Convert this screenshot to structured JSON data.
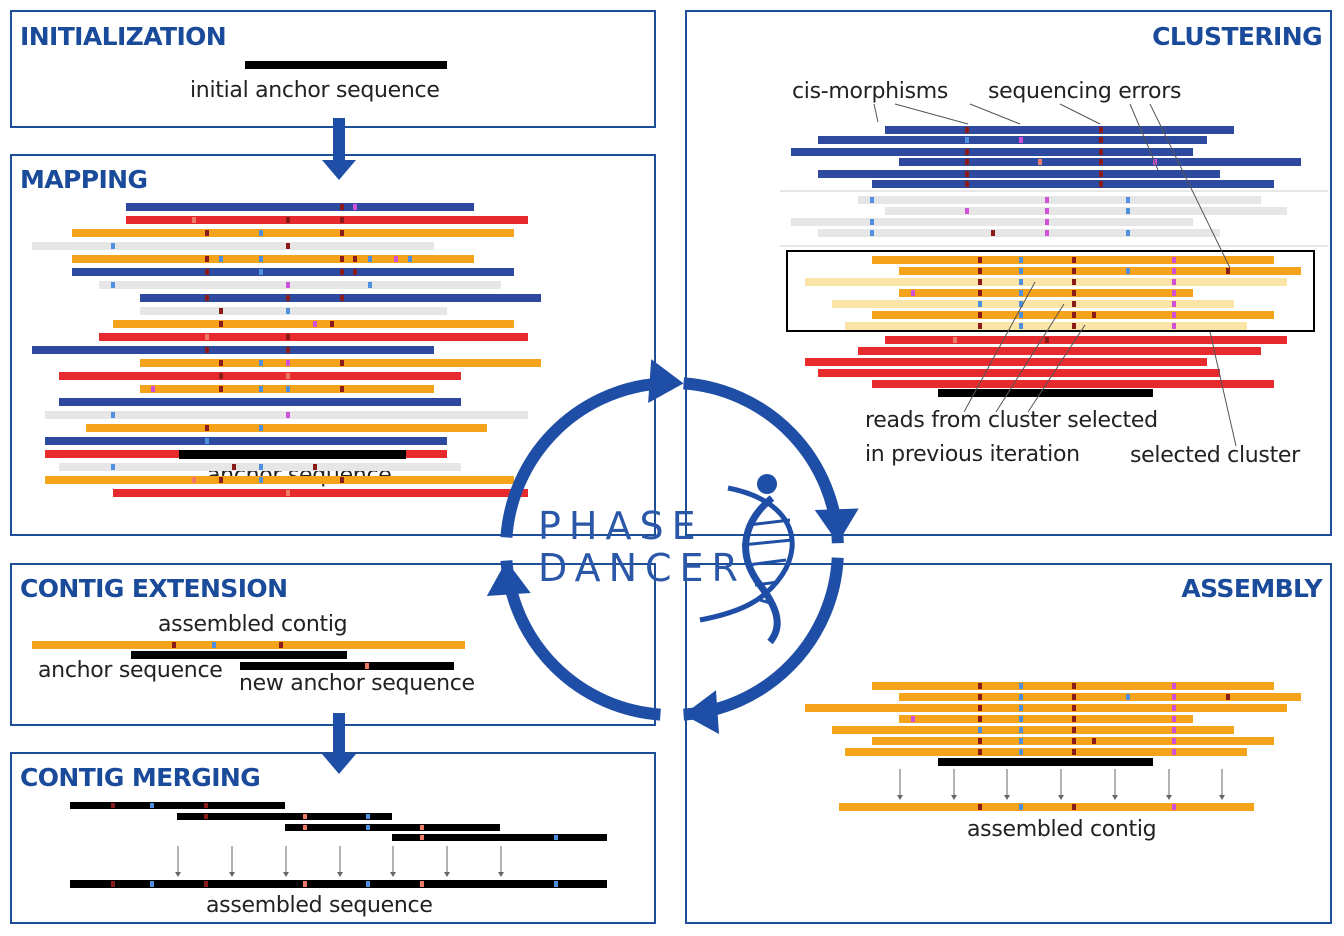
{
  "brand": {
    "line1": "PHASE",
    "line2": "DANCER"
  },
  "colors": {
    "frame": "#1f4e99",
    "title": "#1a4a9a",
    "arrow": "#1e4ea6",
    "haplotype_blue": "#2e4a9e",
    "haplotype_red": "#e62a2e",
    "haplotype_orange": "#f5a31a",
    "unassigned_gray": "#e6e6e6",
    "previous_cluster": "#fae4a8",
    "sequence_black": "#000000",
    "variant_darkred": "#8b1a1a",
    "variant_lightblue": "#4f8fe0",
    "variant_magenta": "#d24fd8",
    "variant_salmon": "#f07a6a"
  },
  "panels": {
    "initialization": {
      "title": "INITIALIZATION",
      "label": "initial anchor sequence"
    },
    "mapping": {
      "title": "MAPPING",
      "label": "anchor sequence"
    },
    "clustering": {
      "title": "CLUSTERING",
      "label_cis": "cis-morphisms",
      "label_errors": "sequencing errors",
      "label_prev_line1": "reads from cluster selected",
      "label_prev_line2": "in previous iteration",
      "label_selected": "selected cluster"
    },
    "contig_extension": {
      "title": "CONTIG EXTENSION",
      "label_contig": "assembled contig",
      "label_anchor": "anchor sequence",
      "label_new_anchor": "new anchor sequence"
    },
    "contig_merging": {
      "title": "CONTIG MERGING",
      "label": "assembled sequence"
    },
    "assembly": {
      "title": "ASSEMBLY",
      "label": "assembled contig"
    }
  }
}
